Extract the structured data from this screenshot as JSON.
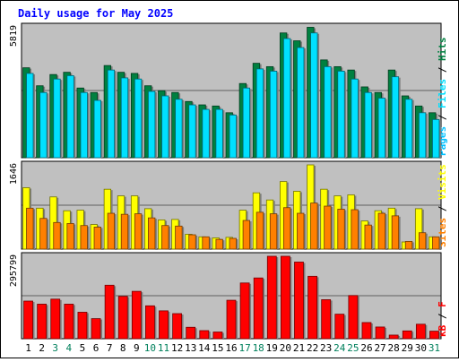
{
  "chart_data": {
    "type": "bar",
    "title": "Daily usage for May 2025",
    "categories": [
      "1",
      "2",
      "3",
      "4",
      "5",
      "6",
      "7",
      "8",
      "9",
      "10",
      "11",
      "12",
      "13",
      "14",
      "15",
      "16",
      "17",
      "18",
      "19",
      "20",
      "21",
      "22",
      "23",
      "24",
      "25",
      "26",
      "27",
      "28",
      "29",
      "30",
      "31"
    ],
    "weekend_categories": [
      "3",
      "4",
      "10",
      "11",
      "17",
      "18",
      "24",
      "25",
      "31"
    ],
    "panels": [
      {
        "id": "hits",
        "ymax_label": "5819",
        "ylim": [
          0,
          5819
        ],
        "right_label": [
          "Pages",
          "Files",
          "Hits"
        ],
        "series": [
          {
            "name": "Hits",
            "color": "#008040",
            "values": [
              4000,
              3200,
              3700,
              3800,
              3100,
              2900,
              4100,
              3800,
              3750,
              3200,
              2980,
              2900,
              2500,
              2350,
              2300,
              2000,
              3300,
              4200,
              4050,
              5550,
              5200,
              5800,
              4350,
              4050,
              3900,
              3150,
              2900,
              3900,
              2750,
              2300,
              2000
            ]
          },
          {
            "name": "Files",
            "color": "#00E0FF",
            "values": [
              3750,
              2900,
              3500,
              3650,
              2900,
              2550,
              3900,
              3550,
              3500,
              2950,
              2750,
              2600,
              2350,
              2150,
              2150,
              1900,
              3100,
              3950,
              3850,
              5300,
              4900,
              5550,
              4050,
              3850,
              3500,
              2900,
              2650,
              3600,
              2600,
              2000,
              1700
            ]
          },
          {
            "name": "Pages",
            "color": "#00C0FF",
            "values": []
          }
        ]
      },
      {
        "id": "visits",
        "ymax_label": "1646",
        "ylim": [
          0,
          1646
        ],
        "right_label": [
          "Sites",
          "Visits"
        ],
        "series": [
          {
            "name": "Visits",
            "color": "#FFFF00",
            "values": [
              1200,
              800,
              1020,
              750,
              760,
              480,
              1170,
              1040,
              1040,
              790,
              570,
              580,
              290,
              240,
              220,
              230,
              760,
              1100,
              960,
              1320,
              1130,
              1646,
              1170,
              1040,
              1060,
              550,
              750,
              800,
              140,
              790,
              240
            ]
          },
          {
            "name": "Sites",
            "color": "#FF8000",
            "values": [
              800,
              600,
              520,
              500,
              460,
              430,
              700,
              680,
              690,
              610,
              460,
              450,
              280,
              240,
              190,
              210,
              560,
              720,
              690,
              810,
              700,
              900,
              840,
              780,
              770,
              470,
              700,
              650,
              150,
              320,
              240
            ]
          }
        ]
      },
      {
        "id": "kbytes",
        "ymax_label": "295799",
        "ylim": [
          0,
          295799
        ],
        "right_label": [
          "kB",
          "F"
        ],
        "series": [
          {
            "name": "kB F",
            "color": "#FF0000",
            "values": [
              135000,
              124000,
              142000,
              124000,
              95000,
              72000,
              192000,
              152000,
              170000,
              118000,
              100000,
              90000,
              41000,
              29000,
              24000,
              138000,
              200000,
              218000,
              295799,
              295799,
              275000,
              224000,
              140000,
              88000,
              155000,
              58000,
              42000,
              13000,
              28000,
              52000,
              27000
            ]
          }
        ]
      }
    ],
    "colors": {
      "background": "#FFFFFF",
      "plot_bg": "#C0C0C0",
      "title": "#0000FF",
      "weekend_label": "#00805C",
      "weekday_label": "#000000"
    }
  }
}
